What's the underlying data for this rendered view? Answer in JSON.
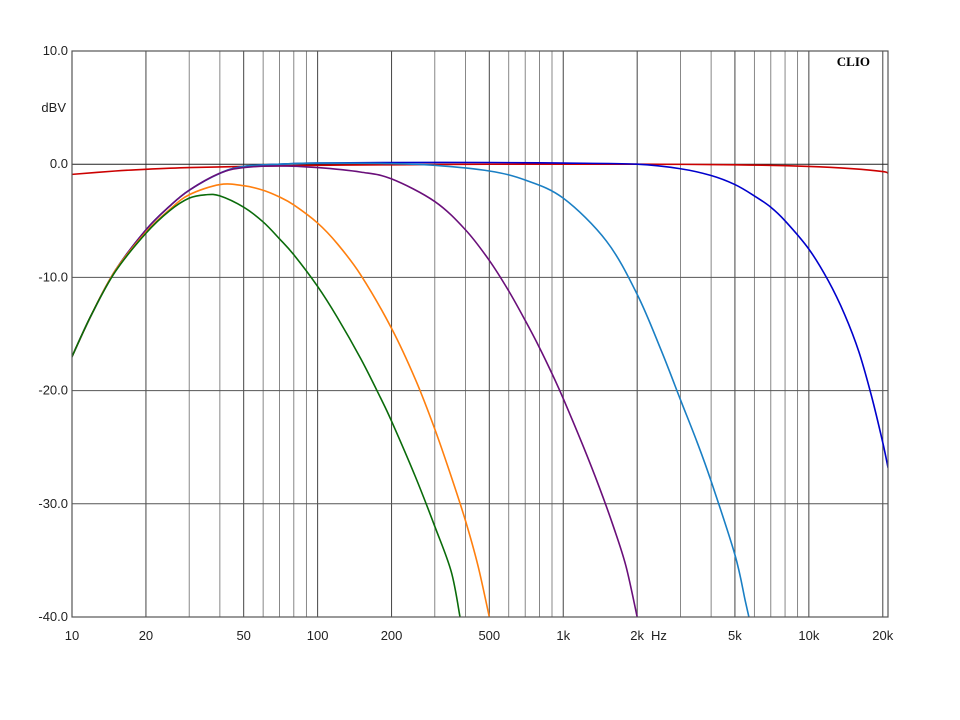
{
  "chart_data": {
    "type": "line",
    "brand": "CLIO",
    "ylabel": "dBV",
    "xunit": "Hz",
    "xscale": "log",
    "xlim": [
      10,
      21000
    ],
    "ylim": [
      -40,
      10
    ],
    "grid": true,
    "x_ticks": [
      {
        "value": 10,
        "label": "10"
      },
      {
        "value": 20,
        "label": "20"
      },
      {
        "value": 50,
        "label": "50"
      },
      {
        "value": 100,
        "label": "100"
      },
      {
        "value": 200,
        "label": "200"
      },
      {
        "value": 500,
        "label": "500"
      },
      {
        "value": 1000,
        "label": "1k"
      },
      {
        "value": 2000,
        "label": "2k"
      },
      {
        "value": 5000,
        "label": "5k"
      },
      {
        "value": 10000,
        "label": "10k"
      },
      {
        "value": 20000,
        "label": "20k"
      }
    ],
    "y_ticks": [
      {
        "value": 10,
        "label": "10.0"
      },
      {
        "value": 0,
        "label": "0.0"
      },
      {
        "value": -10,
        "label": "-10.0"
      },
      {
        "value": -20,
        "label": "-20.0"
      },
      {
        "value": -30,
        "label": "-30.0"
      },
      {
        "value": -40,
        "label": "-40.0"
      }
    ],
    "series": [
      {
        "color": "#cc0000",
        "x": [
          10,
          15,
          20,
          30,
          50,
          100,
          200,
          500,
          1000,
          2000,
          5000,
          10000,
          15000,
          20000,
          21000
        ],
        "y": [
          -0.9,
          -0.6,
          -0.45,
          -0.3,
          -0.2,
          -0.1,
          -0.05,
          0,
          0,
          0,
          -0.05,
          -0.2,
          -0.4,
          -0.65,
          -0.8
        ]
      },
      {
        "color": "#0000cc",
        "x": [
          10,
          12,
          15,
          20,
          25,
          30,
          40,
          50,
          70,
          100,
          200,
          500,
          1000,
          2000,
          3000,
          4000,
          5000,
          6000,
          7000,
          8000,
          10000,
          12000,
          14000,
          16000,
          18000,
          20000,
          21000
        ],
        "y": [
          -17,
          -13.3,
          -9.4,
          -5.8,
          -3.7,
          -2.3,
          -0.8,
          -0.2,
          0,
          0.1,
          0.15,
          0.15,
          0.1,
          0,
          -0.4,
          -1,
          -1.8,
          -2.8,
          -3.8,
          -5,
          -7.5,
          -10.3,
          -13.3,
          -16.6,
          -20.5,
          -24.6,
          -26.8
        ]
      },
      {
        "color": "#1a7fc4",
        "x": [
          10,
          12,
          15,
          20,
          25,
          30,
          40,
          50,
          70,
          100,
          200,
          300,
          500,
          700,
          1000,
          1500,
          2000,
          2500,
          3000,
          3500,
          4000,
          5000,
          5500,
          5700
        ],
        "y": [
          -17,
          -13.3,
          -9.4,
          -5.8,
          -3.7,
          -2.3,
          -0.8,
          -0.2,
          0,
          0.1,
          0.05,
          -0.1,
          -0.6,
          -1.4,
          -3,
          -6.8,
          -11.5,
          -16.4,
          -20.8,
          -24.5,
          -28,
          -34.5,
          -38.5,
          -40
        ]
      },
      {
        "color": "#6a0f7a",
        "x": [
          10,
          12,
          15,
          20,
          25,
          30,
          40,
          50,
          70,
          100,
          150,
          200,
          300,
          400,
          500,
          600,
          700,
          800,
          900,
          1000,
          1200,
          1400,
          1600,
          1800,
          2000
        ],
        "y": [
          -17,
          -13.3,
          -9.4,
          -5.8,
          -3.7,
          -2.3,
          -0.8,
          -0.3,
          -0.15,
          -0.3,
          -0.7,
          -1.3,
          -3.3,
          -5.8,
          -8.5,
          -11.2,
          -13.8,
          -16.2,
          -18.5,
          -20.7,
          -24.8,
          -28.5,
          -32,
          -35.5,
          -40
        ]
      },
      {
        "color": "#ff7f0e",
        "x": [
          10,
          12,
          15,
          20,
          25,
          30,
          40,
          50,
          60,
          70,
          80,
          100,
          120,
          150,
          200,
          250,
          300,
          350,
          400,
          450,
          500
        ],
        "y": [
          -17,
          -13.3,
          -9.4,
          -6,
          -4,
          -2.7,
          -1.8,
          -1.9,
          -2.3,
          -2.9,
          -3.6,
          -5.2,
          -7,
          -9.8,
          -14.5,
          -19,
          -23.4,
          -27.6,
          -31.5,
          -35.5,
          -40
        ]
      },
      {
        "color": "#0a6b0a",
        "x": [
          10,
          12,
          15,
          20,
          25,
          30,
          35,
          40,
          50,
          60,
          70,
          80,
          100,
          120,
          150,
          180,
          200,
          250,
          300,
          350,
          380
        ],
        "y": [
          -17,
          -13.3,
          -9.5,
          -6.1,
          -4.1,
          -3,
          -2.7,
          -2.8,
          -3.8,
          -5.1,
          -6.6,
          -8,
          -10.8,
          -13.5,
          -17.2,
          -20.6,
          -22.7,
          -27.6,
          -32,
          -36,
          -40
        ]
      }
    ]
  }
}
